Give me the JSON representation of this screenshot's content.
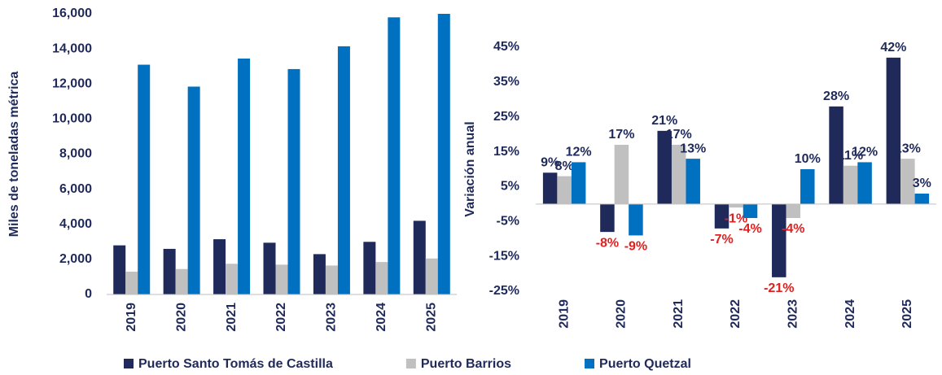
{
  "chart_data": [
    {
      "type": "bar",
      "y_label": "Miles de toneladas métrica",
      "categories": [
        "2019",
        "2020",
        "2021",
        "2022",
        "2023",
        "2024",
        "2025"
      ],
      "series": [
        {
          "name": "Puerto Santo Tomás de Castilla",
          "color": "#1f2a5a",
          "values": [
            2800,
            2600,
            3150,
            2950,
            2300,
            3000,
            4200
          ]
        },
        {
          "name": "Puerto Barrios",
          "color": "#c0c0c0",
          "values": [
            1300,
            1450,
            1750,
            1700,
            1650,
            1850,
            2050
          ]
        },
        {
          "name": "Puerto Quetzal",
          "color": "#0070c0",
          "values": [
            13100,
            11850,
            13450,
            12850,
            14150,
            15800,
            16000
          ]
        }
      ],
      "ylim": [
        0,
        16000
      ],
      "yticks": [
        0,
        {
          "value": 2000,
          "label": "2,000"
        },
        {
          "value": 4000,
          "label": "4,000"
        },
        {
          "value": 6000,
          "label": "6,000"
        },
        {
          "value": 8000,
          "label": "8,000"
        },
        {
          "value": 10000,
          "label": "10,000"
        },
        {
          "value": 12000,
          "label": "12,000"
        },
        {
          "value": 14000,
          "label": "14,000"
        },
        {
          "value": 16000,
          "label": "16,000"
        }
      ]
    },
    {
      "type": "bar",
      "y_label": "Variación anual",
      "categories": [
        "2019",
        "2020",
        "2021",
        "2022",
        "2023",
        "2024",
        "2025"
      ],
      "negative_label_color": "#e02020",
      "series": [
        {
          "color": "#1f2a5a",
          "values": [
            9,
            -8,
            21,
            -7,
            -21,
            28,
            42
          ],
          "value_labels": [
            "9%",
            "-8%",
            "21%",
            "-7%",
            "-21%",
            "28%",
            "42%"
          ]
        },
        {
          "color": "#c0c0c0",
          "values": [
            8,
            17,
            17,
            -1,
            -4,
            11,
            13
          ],
          "value_labels": [
            "8%",
            "17%",
            "17%",
            "-1%",
            "-4%",
            "11%",
            "13%"
          ]
        },
        {
          "color": "#0070c0",
          "values": [
            12,
            -9,
            13,
            -4,
            10,
            12,
            3
          ],
          "value_labels": [
            "12%",
            "-9%",
            "13%",
            "-4%",
            "10%",
            "12%",
            "3%"
          ]
        }
      ],
      "ylim": [
        -25,
        45
      ],
      "yticks": [
        {
          "value": -25,
          "label": "-25%"
        },
        {
          "value": -15,
          "label": "-15%"
        },
        {
          "value": -5,
          "label": "-5%"
        },
        {
          "value": 5,
          "label": "5%"
        },
        {
          "value": 15,
          "label": "15%"
        },
        {
          "value": 25,
          "label": "25%"
        },
        {
          "value": 35,
          "label": "35%"
        },
        {
          "value": 45,
          "label": "45%"
        }
      ]
    }
  ]
}
